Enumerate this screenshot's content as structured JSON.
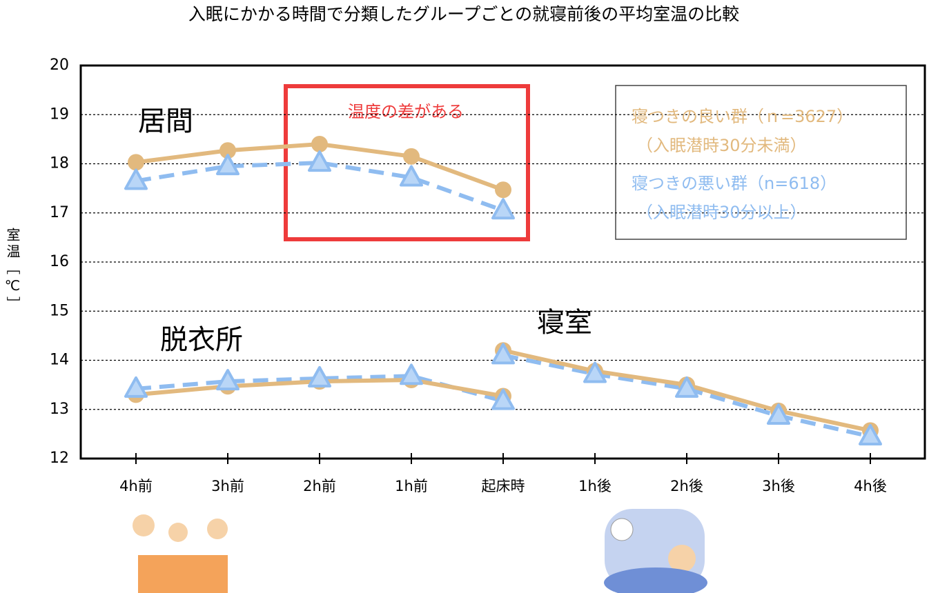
{
  "chart_data": {
    "type": "line",
    "title": "入眠にかかる時間で分類したグループごとの就寝前後の平均室温の比較",
    "y_label": "室温［℃］",
    "categories": [
      "4h前",
      "3h前",
      "2h前",
      "1h前",
      "起床時",
      "1h後",
      "2h後",
      "3h後",
      "4h後"
    ],
    "ylim": [
      12,
      20
    ],
    "yticks": [
      12,
      13,
      14,
      15,
      16,
      17,
      18,
      19,
      20
    ],
    "grid": true,
    "series": [
      {
        "name": "寝つきの良い群（ｎ=3627）",
        "subname": "（入眠潜時30分未満）",
        "color": "#e2b97e",
        "marker": "circle",
        "dashed": false
      },
      {
        "name": "寝つきの悪い群（n=618）",
        "subname": "（入眠潜時30分以上）",
        "color": "#8fbcf0",
        "marker": "triangle",
        "dashed": true
      }
    ],
    "rooms": [
      {
        "label": "居間",
        "series_values": [
          [
            18.03,
            18.27,
            18.4,
            18.15,
            17.47,
            null,
            null,
            null,
            null
          ],
          [
            17.65,
            17.95,
            18.02,
            17.72,
            17.05,
            null,
            null,
            null,
            null
          ]
        ]
      },
      {
        "label": "脱衣所",
        "series_values": [
          [
            13.3,
            13.47,
            13.57,
            13.6,
            13.27,
            null,
            null,
            null,
            null
          ],
          [
            13.42,
            13.57,
            13.63,
            13.68,
            13.17,
            null,
            null,
            null,
            null
          ]
        ]
      },
      {
        "label": "寝室",
        "series_values": [
          [
            null,
            null,
            null,
            null,
            14.2,
            13.78,
            13.5,
            12.97,
            12.57
          ],
          [
            null,
            null,
            null,
            null,
            14.1,
            13.72,
            13.42,
            12.87,
            12.45
          ]
        ]
      }
    ],
    "annotation": "温度の差がある"
  }
}
